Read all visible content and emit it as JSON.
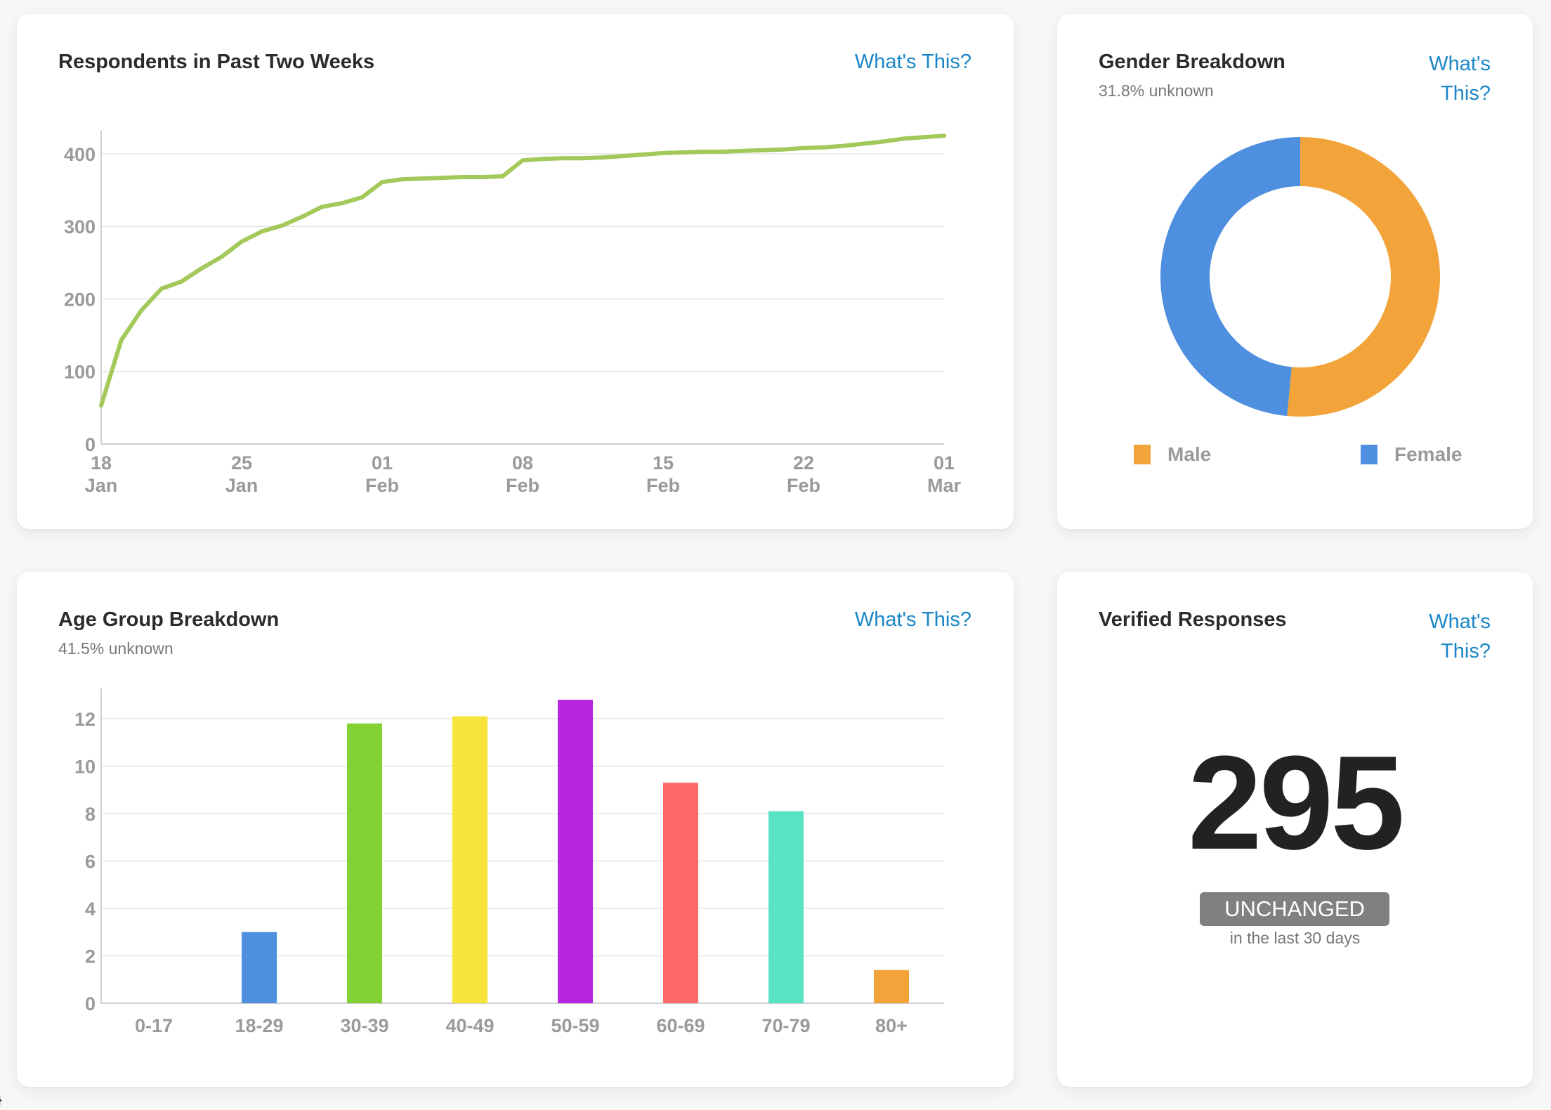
{
  "whats_this": "What's This?",
  "respondents": {
    "title": "Respondents in Past Two Weeks",
    "chart_data": {
      "type": "line",
      "title": "Respondents in Past Two Weeks",
      "x_tick_labels": [
        [
          "18",
          "Jan"
        ],
        [
          "25",
          "Jan"
        ],
        [
          "01",
          "Feb"
        ],
        [
          "08",
          "Feb"
        ],
        [
          "15",
          "Feb"
        ],
        [
          "22",
          "Feb"
        ],
        [
          "01",
          "Mar"
        ]
      ],
      "y_ticks": [
        0,
        100,
        200,
        300,
        400
      ],
      "ylim": [
        0,
        430
      ],
      "x_dates": [
        "2021-01-18",
        "2021-01-19",
        "2021-01-20",
        "2021-01-21",
        "2021-01-22",
        "2021-01-23",
        "2021-01-24",
        "2021-01-25",
        "2021-01-26",
        "2021-01-27",
        "2021-01-28",
        "2021-01-29",
        "2021-01-30",
        "2021-01-31",
        "2021-02-01",
        "2021-02-02",
        "2021-02-03",
        "2021-02-04",
        "2021-02-05",
        "2021-02-06",
        "2021-02-07",
        "2021-02-08",
        "2021-02-09",
        "2021-02-10",
        "2021-02-11",
        "2021-02-12",
        "2021-02-13",
        "2021-02-14",
        "2021-02-15",
        "2021-02-16",
        "2021-02-17",
        "2021-02-18",
        "2021-02-19",
        "2021-02-20",
        "2021-02-21",
        "2021-02-22",
        "2021-02-23",
        "2021-02-24",
        "2021-02-25",
        "2021-02-26",
        "2021-02-27",
        "2021-02-28",
        "2021-03-01"
      ],
      "series": [
        {
          "color": "#a2c95a",
          "values": [
            53,
            143,
            184,
            214,
            224,
            242,
            258,
            279,
            293,
            301,
            313,
            327,
            332,
            340,
            361,
            365,
            366,
            367,
            368,
            368,
            369,
            391,
            393,
            394,
            394,
            395,
            397,
            399,
            401,
            402,
            403,
            403,
            404,
            405,
            406,
            408,
            409,
            411,
            414,
            417,
            421,
            423,
            425
          ]
        }
      ],
      "grid": true
    }
  },
  "gender": {
    "title": "Gender Breakdown",
    "subtitle": "31.8% unknown",
    "chart_data": {
      "type": "pie",
      "donut": true,
      "slices": [
        {
          "label": "Male",
          "value": 51.5,
          "color": "#f2a43a"
        },
        {
          "label": "Female",
          "value": 48.5,
          "color": "#4f8fdf"
        }
      ]
    }
  },
  "age": {
    "title": "Age Group Breakdown",
    "subtitle": "41.5% unknown",
    "chart_data": {
      "type": "bar",
      "categories": [
        "0-17",
        "18-29",
        "30-39",
        "40-49",
        "50-59",
        "60-69",
        "70-79",
        "80+"
      ],
      "values": [
        0,
        3.0,
        11.8,
        12.1,
        12.8,
        9.3,
        8.1,
        1.4
      ],
      "colors": [
        "#4f8fdf",
        "#4f8fdf",
        "#82d236",
        "#f6e43a",
        "#b827df",
        "#fe6a6a",
        "#58e3c3",
        "#f2a43a"
      ],
      "y_ticks": [
        0,
        2,
        4,
        6,
        8,
        10,
        12
      ],
      "ylim": [
        0,
        12.8
      ],
      "grid": true
    }
  },
  "verified": {
    "title": "Verified Responses",
    "count": "295",
    "badge": "UNCHANGED",
    "note": "in the last 30 days"
  },
  "corner_glyph": "}"
}
